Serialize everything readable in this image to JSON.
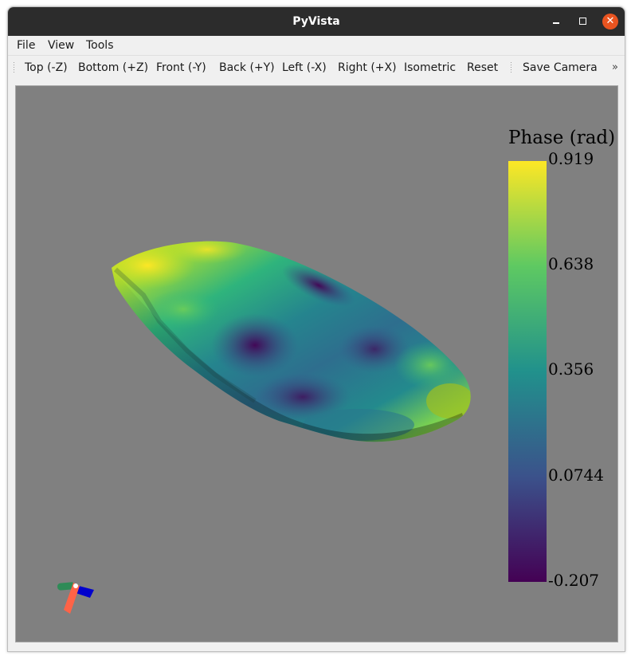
{
  "window": {
    "title": "PyVista"
  },
  "menu": {
    "items": [
      "File",
      "View",
      "Tools"
    ]
  },
  "toolbar": {
    "buttons": [
      "Top (-Z)",
      "Bottom (+Z)",
      "Front (-Y)",
      "Back (+Y)",
      "Left (-X)",
      "Right (+X)",
      "Isometric",
      "Reset",
      "Save Camera"
    ],
    "overflow": "»"
  },
  "scene": {
    "background_color": "#808080",
    "mesh_colormap": "viridis",
    "axes_widget_colors": {
      "x": "#ff6347",
      "y": "#2e8b57",
      "z": "#0000cd"
    }
  },
  "colorbar": {
    "title": "Phase (rad)",
    "ticks": [
      "0.919",
      "0.638",
      "0.356",
      "0.0744",
      "-0.207"
    ],
    "min": -0.207,
    "max": 0.919,
    "colors": [
      "#fde725",
      "#5ec962",
      "#21918c",
      "#3b528b",
      "#440154"
    ]
  }
}
